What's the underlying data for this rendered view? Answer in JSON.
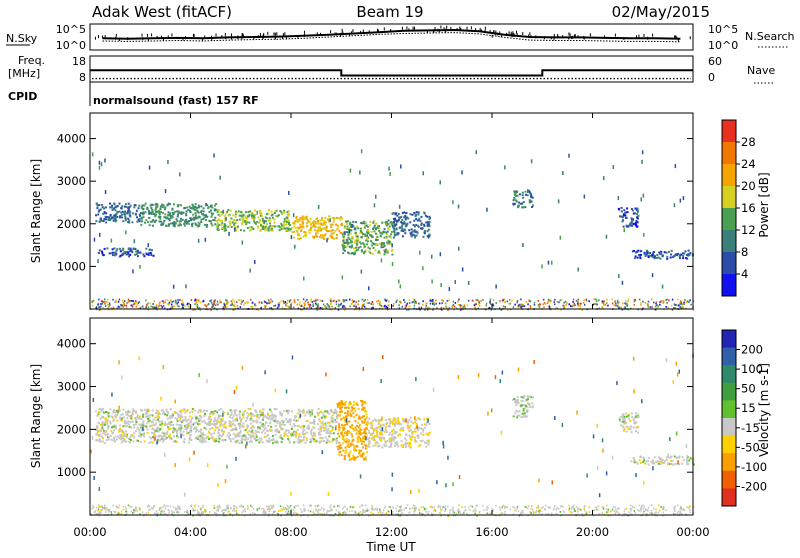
{
  "header": {
    "title_left": "Adak West (fitACF)",
    "title_center": "Beam 19",
    "title_right": "02/May/2015"
  },
  "nsky_panel": {
    "left_label": "N.Sky",
    "right_label": "N.Search",
    "left_ticks": [
      "10^5",
      "10^0"
    ],
    "right_ticks": [
      "10^5",
      "10^0"
    ],
    "nsky_log10": [
      2.2,
      2.1,
      2.2,
      2.3,
      2.2,
      2.4,
      2.5,
      2.6,
      2.8,
      3.0,
      3.3,
      3.6,
      3.9,
      4.0,
      4.1,
      3.8,
      3.0,
      2.5,
      2.4,
      2.4,
      2.3,
      2.2,
      2.2,
      2.1
    ],
    "nsearch_log10": [
      1.6,
      1.5,
      1.6,
      1.7,
      1.6,
      1.8,
      1.9,
      2.0,
      2.2,
      2.5,
      2.8,
      3.1,
      3.3,
      3.4,
      3.5,
      3.2,
      2.4,
      1.8,
      1.7,
      1.7,
      1.6,
      1.5,
      1.5,
      1.4
    ]
  },
  "freq_panel": {
    "left_label_1": "Freq.",
    "left_label_2": "[MHz]",
    "right_label": "Nave",
    "left_ticks": [
      "18",
      "8"
    ],
    "right_ticks": [
      "60",
      "0"
    ],
    "freq_mhz": [
      {
        "t": 0,
        "v": 12.5
      },
      {
        "t": 10.0,
        "v": 12.5
      },
      {
        "t": 10.0,
        "v": 10.5
      },
      {
        "t": 18.0,
        "v": 10.5
      },
      {
        "t": 18.0,
        "v": 12.5
      },
      {
        "t": 24.0,
        "v": 12.5
      }
    ],
    "nave_level": 8
  },
  "cpid": {
    "label": "CPID",
    "text": "normalsound (fast) 157 RF"
  },
  "power_panel": {
    "ylabel": "Slant Range [km]",
    "yticks": [
      "1000",
      "2000",
      "3000",
      "4000"
    ],
    "ylim": [
      0,
      4600
    ],
    "colorbar_label": "Power [dB]",
    "colorbar_ticks": [
      "4",
      "8",
      "12",
      "16",
      "20",
      "24",
      "28"
    ],
    "colorbar_colors": [
      "#1010f0",
      "#2a4ea8",
      "#3a7f7a",
      "#4aa050",
      "#d8d020",
      "#f5a400",
      "#f07800",
      "#e83020"
    ]
  },
  "velocity_panel": {
    "ylabel": "Slant Range [km]",
    "yticks": [
      "1000",
      "2000",
      "3000",
      "4000"
    ],
    "ylim": [
      0,
      4600
    ],
    "colorbar_label": "Velocity [m s-1]",
    "colorbar_ticks": [
      "200",
      "100",
      "50",
      "15",
      "-15",
      "-50",
      "-100",
      "-200"
    ],
    "colorbar_colors": [
      "#2424b4",
      "#3060a8",
      "#2f8a6a",
      "#40a040",
      "#60c030",
      "#c8c8c8",
      "#ffd000",
      "#f8a000",
      "#f06000",
      "#e03020"
    ]
  },
  "xaxis": {
    "label": "Time UT",
    "ticks": [
      "00:00",
      "04:00",
      "08:00",
      "12:00",
      "16:00",
      "20:00",
      "00:00"
    ]
  },
  "chart_data": [
    {
      "type": "line",
      "name_left": "N.Sky",
      "name_right": "N.Search",
      "x": "hour UT 0-24",
      "note": "log-scale noise traces"
    },
    {
      "type": "line",
      "ylabel": "[MHz]",
      "xlim": [
        0,
        24
      ],
      "ylim": [
        8,
        18
      ],
      "points": [
        [
          0,
          12.5
        ],
        [
          10,
          12.5
        ],
        [
          10,
          10.5
        ],
        [
          18,
          10.5
        ],
        [
          18,
          12.5
        ],
        [
          24,
          12.5
        ]
      ]
    },
    {
      "type": "heatmap",
      "ylabel": "Slant Range [km]",
      "xlabel": "Time UT",
      "xlim": [
        0,
        24
      ],
      "ylim": [
        0,
        4600
      ],
      "colorbar": "Power [dB]",
      "scale": [
        0,
        30
      ],
      "echo_regions": [
        {
          "t0": 0.2,
          "t1": 2.0,
          "r0": 2050,
          "r1": 2500,
          "power": 8
        },
        {
          "t0": 2.0,
          "t1": 5.0,
          "r0": 1950,
          "r1": 2500,
          "power": 12
        },
        {
          "t0": 5.0,
          "t1": 8.0,
          "r0": 1850,
          "r1": 2350,
          "power": 16
        },
        {
          "t0": 8.0,
          "t1": 10.0,
          "r0": 1650,
          "r1": 2200,
          "power": 20
        },
        {
          "t0": 10.0,
          "t1": 12.0,
          "r0": 1300,
          "r1": 2100,
          "power": 14
        },
        {
          "t0": 12.0,
          "t1": 13.5,
          "r0": 1700,
          "r1": 2300,
          "power": 8
        },
        {
          "t0": 0.3,
          "t1": 2.5,
          "r0": 1250,
          "r1": 1450,
          "power": 6
        },
        {
          "t0": 16.8,
          "t1": 17.6,
          "r0": 2400,
          "r1": 2800,
          "power": 10
        },
        {
          "t0": 21.0,
          "t1": 21.8,
          "r0": 1950,
          "r1": 2400,
          "power": 6
        },
        {
          "t0": 21.5,
          "t1": 24.0,
          "r0": 1200,
          "r1": 1400,
          "power": 6
        }
      ]
    },
    {
      "type": "heatmap",
      "ylabel": "Slant Range [km]",
      "xlabel": "Time UT",
      "xlim": [
        0,
        24
      ],
      "ylim": [
        0,
        4600
      ],
      "colorbar": "Velocity [m s-1]",
      "scale": [
        -250,
        250
      ],
      "echo_regions": [
        {
          "t0": 0.2,
          "t1": 9.8,
          "r0": 1700,
          "r1": 2500,
          "velocity": 0
        },
        {
          "t0": 9.8,
          "t1": 11.0,
          "r0": 1300,
          "r1": 2700,
          "velocity": -60
        },
        {
          "t0": 11.0,
          "t1": 13.5,
          "r0": 1600,
          "r1": 2300,
          "velocity": -10
        },
        {
          "t0": 16.8,
          "t1": 17.6,
          "r0": 2300,
          "r1": 2800,
          "velocity": 5
        },
        {
          "t0": 21.0,
          "t1": 21.8,
          "r0": 1950,
          "r1": 2400,
          "velocity": 0
        },
        {
          "t0": 21.5,
          "t1": 24.0,
          "r0": 1200,
          "r1": 1400,
          "velocity": 0
        }
      ]
    }
  ]
}
